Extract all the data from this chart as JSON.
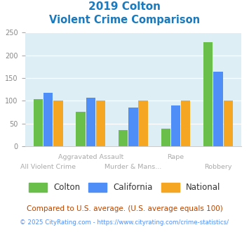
{
  "title_line1": "2019 Colton",
  "title_line2": "Violent Crime Comparison",
  "categories": [
    "All Violent Crime",
    "Aggravated Assault",
    "Murder & Mans...",
    "Rape",
    "Robbery"
  ],
  "colton": [
    103,
    76,
    35,
    38,
    229
  ],
  "california": [
    118,
    106,
    85,
    89,
    163
  ],
  "national": [
    100,
    100,
    100,
    100,
    100
  ],
  "colton_color": "#6abf4b",
  "california_color": "#4f8ef7",
  "national_color": "#f5a623",
  "bg_color": "#ddeef5",
  "title_color": "#1a7abf",
  "ylabel_max": 250,
  "yticks": [
    0,
    50,
    100,
    150,
    200,
    250
  ],
  "footnote1": "Compared to U.S. average. (U.S. average equals 100)",
  "footnote2": "© 2025 CityRating.com - https://www.cityrating.com/crime-statistics/",
  "footnote1_color": "#b84400",
  "footnote2_color": "#4f8ef7",
  "label_row1": [
    "",
    "Aggravated Assault",
    "",
    "Rape",
    ""
  ],
  "label_row2": [
    "All Violent Crime",
    "",
    "Murder & Mans...",
    "",
    "Robbery"
  ],
  "label_color": "#aaaaaa"
}
